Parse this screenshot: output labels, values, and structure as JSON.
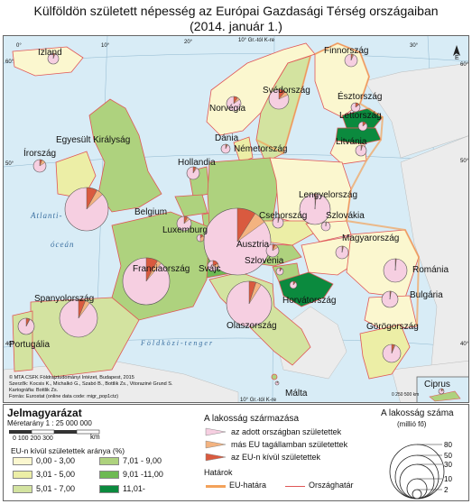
{
  "title_line1": "Külföldön született népesség az Európai Gazdasági Térség országaiban",
  "title_line2": "(2014. január 1.)",
  "countries": [
    {
      "name": "Izland"
    },
    {
      "name": "Norvégia"
    },
    {
      "name": "Svédország"
    },
    {
      "name": "Finnország"
    },
    {
      "name": "Észtország"
    },
    {
      "name": "Lettország"
    },
    {
      "name": "Litvánia"
    },
    {
      "name": "Dánia"
    },
    {
      "name": "Egyesült Királyság"
    },
    {
      "name": "Írország"
    },
    {
      "name": "Hollandia"
    },
    {
      "name": "Belgium"
    },
    {
      "name": "Luxemburg"
    },
    {
      "name": "Németország"
    },
    {
      "name": "Lengyelország"
    },
    {
      "name": "Csehország"
    },
    {
      "name": "Szlovákia"
    },
    {
      "name": "Ausztria"
    },
    {
      "name": "Magyarország"
    },
    {
      "name": "Svájc"
    },
    {
      "name": "Szlovénia"
    },
    {
      "name": "Horvátország"
    },
    {
      "name": "Románia"
    },
    {
      "name": "Bulgária"
    },
    {
      "name": "Franciaország"
    },
    {
      "name": "Spanyolország"
    },
    {
      "name": "Portugália"
    },
    {
      "name": "Olaszország"
    },
    {
      "name": "Görögország"
    },
    {
      "name": "Málta"
    },
    {
      "name": "Ciprus"
    }
  ],
  "map_text": {
    "atlantic_1": "Atlanti-",
    "atlantic_2": "óceán",
    "mediterranean": "F ö l d k ö z i   -   t e n g e r",
    "gr_top": "10° Gr.-tól K-re",
    "gr_bottom": "10° Gr.-tól K-re",
    "north": "É",
    "scale_bar": "0    250 500 km",
    "lon_0": "0°",
    "lon_10": "10°",
    "lon_20": "20°",
    "lon_30": "30°",
    "lat_50_left": "50°",
    "lat_50_right": "50°",
    "lat_60_left": "60°",
    "lat_60_right": "60°",
    "lat_40_left": "40°",
    "lat_40_right": "40°",
    "credit_1": "© MTA CSFK Földrajztudományi Intézet, Budapest, 2015",
    "credit_2": "Szerzők: Kocsis K., Michalkó G., Szabó B., Bottlik Zs., Vitoraziné Grund S.",
    "credit_3": "Kartográfia: Bottlik Zs.",
    "credit_4": "Forrás: Eurostat (online data code: migr_pop1ctz)"
  },
  "legend": {
    "heading": "Jelmagyarázat",
    "scale": "Méretarány 1 : 25 000 000",
    "scale_ticks": "0   100  200  300",
    "km": "km",
    "class_title": "EU-n kívül születettek aránya (%)",
    "classes": [
      {
        "label": "0,00 - 3,00",
        "color": "#fbf7cf"
      },
      {
        "label": "3,01 - 5,00",
        "color": "#eceea6"
      },
      {
        "label": "5,01 - 7,00",
        "color": "#d3e3a0"
      },
      {
        "label": "7,01 - 9,00",
        "color": "#aed27e"
      },
      {
        "label": "9,01 -11,00",
        "color": "#6dba53"
      },
      {
        "label": "11,01-",
        "color": "#0b8a3e"
      }
    ],
    "origin_title": "A lakosság származása",
    "origin_items": [
      {
        "label": "az adott országban születettek",
        "color": "#f6cfe1"
      },
      {
        "label": "más EU tagállamban születettek",
        "color": "#f3b380"
      },
      {
        "label": "az EU-n kívül születettek",
        "color": "#d95a3f"
      }
    ],
    "borders_title": "Határok",
    "border_eu": "EU-határa",
    "border_country": "Országhatár",
    "border_eu_color": "#f3a25a",
    "border_country_color": "#e05757",
    "pop_title": "A lakosság száma",
    "pop_unit": "(millió fő)",
    "pop_values": [
      "80",
      "50",
      "30",
      "10",
      "2"
    ],
    "cyprus_inset": "Ciprus"
  }
}
